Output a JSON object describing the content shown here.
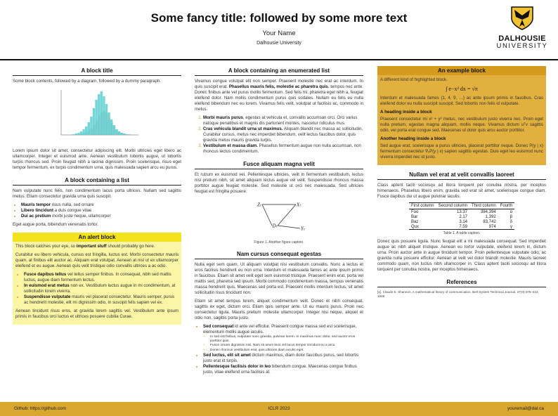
{
  "header": {
    "title": "Some fancy title: followed by some more text",
    "author": "Your Name",
    "affiliation": "Dalhousie University"
  },
  "logo": {
    "name": "DALHOUSIE",
    "subtitle": "UNIVERSITY"
  },
  "columns": [
    [
      {
        "title": "A block title",
        "style": "plain",
        "content": [
          {
            "p": [
              "Some block contents, followed by a diagram, followed by a dummy paragraph."
            ]
          },
          {
            "figure": "histogram"
          },
          {
            "p": [
              "Lorem ipsum dolor sit amet, consectetur adipiscing elit. Morbi ultricies eget libero ac ullamcorper. Integer et euismod ante. Aenean vestibulum lobortis augue, ut lobortis turpis rhoncus sed. Proin feugiat nibh a lacinia dignissim. Proin scelerisque, risus eget tempor fermentum, ex turpis condimentum urna, quis malesuada sapien arcu eu purus."
            ]
          }
        ]
      },
      {
        "title": "A block containing a list",
        "style": "plain",
        "content": [
          {
            "p": [
              "Nam vulputate nunc felis, non condimentum lacus porta ultrices. Nullam sed sagittis metus. Etiam consectetur gravida urna quis suscipit."
            ]
          },
          {
            "ul": [
              {
                "b": "Mauris tempor",
                "t": " risus nulla, sed ornare"
              },
              {
                "b": "Libero tincidunt",
                "t": " a duis congue vitae"
              },
              {
                "b": "Dui ac pretium",
                "t": " morbi juste neque, ullamcorper"
              }
            ]
          },
          {
            "p": [
              "Eget augue porta, bibendum venenatis tortor."
            ]
          }
        ]
      },
      {
        "title": "An alert block",
        "style": "alert",
        "content": [
          {
            "p": [
              "This block catches your eye, so ",
              {
                "b": "important stuff"
              },
              " should probably go here."
            ]
          },
          {
            "p": [
              "Curabitur eu libero vehicula, cursus est fringilla, luctus est. Morbi consectetur mauris quam, at finibus elit auctor ac. Aliquam erat volutpat. Aenean at nisl ut ex ullamcorper eleifend et eu augue. Aenean quis velit tristique odio convallis ultrices a ac odio."
            ]
          },
          {
            "ul": [
              {
                "b": "Fusce dapibus tellus",
                "t": " vel tellus semper finibus. In consequat, nibh sed mattis luctus, augue diam fermentum lectus."
              },
              {
                "b": "In euismod erat metus",
                "t": " non ex. Vestibulum luctus augue in mi condimentum, at sollicitudin lorem viverra."
              },
              {
                "b": "Suspendisse vulputate",
                "t": " mauris vel placerat consectetur. Mauris semper, purus ac hendrerit molestie, elit mi dignissim odio, in suscipit felis sapien vel ex."
              }
            ]
          },
          {
            "p": [
              "Aenean tincidunt risus eros, at gravida lorem sagittis vel. Vestibulum ante ipsum primis in faucibus orci luctus et ultrices posuere cubilia Curae."
            ]
          }
        ]
      }
    ],
    [
      {
        "title": "A block containing an enumerated list",
        "style": "plain",
        "content": [
          {
            "p": [
              "Vivamus congue volutpat elit non semper. Praesent molestie nec erat ac interdum. In quis suscipit erat. ",
              {
                "b": "Phasellus mauris felis, molestie ac pharetra quis"
              },
              ", tempus nec ante. Donec finibus ante vel purus mollis fermentum. Sed felis mi, pharetra eget nibh a, feugiat eleifend dolor. Nam mollis condimentum purus quis sodales. Nullam eu felis eu nulla eleifend bibendum nec eu lorem. Vivamus felis velit, volutpat ut facilisis ac, commodo in metus."
            ]
          },
          {
            "ol": [
              {
                "b": "Morbi mauris purus",
                "t": ", egestas at vehicula et, convallis accumsan orci. Orci varius natoque penatibus et magnis dis parturient montes, nascetur ridiculus mus."
              },
              {
                "b": "Cras vehicula blandit urna ut maximus.",
                "t": " Aliquam blandit nec massa ac sollicitudin. Curabitur cursus, metus nec imperdiet bibendum, velit lectus faucibus dolor, quis gravida metus mauris gravida turpis."
              },
              {
                "b": "Vestibulum et massa diam.",
                "t": " Phasellus fermentum augue non nulla accumsan, non rhoncus lectus condimentum."
              }
            ]
          }
        ]
      },
      {
        "title": "Fusce aliquam magna velit",
        "style": "plain",
        "content": [
          {
            "p": [
              "Et rutrum ex euismod vel. Pellentesque ultricies, velit in fermentum vestibulum, lectus nisi pretium nibh, sit amet aliquam lectus augue vel velit. Suspendisse rhoncus massa porttitor augue feugiat molestie. Sed molestie ut orci nec malesuada. Sed ultricies feugiat est fringilla posuere."
            ]
          },
          {
            "diagram": {
              "labels": [
                "Zₜ",
                "Xₜ",
                "Dₜ",
                "Yₜ"
              ],
              "caption": "Figure 1. Another figure caption."
            }
          }
        ]
      },
      {
        "title": "Nam cursus consequat egestas",
        "style": "plain",
        "content": [
          {
            "p": [
              "Nulla eget sem quam. Ut aliquam volutpat nisi vestibulum convallis. Nunc a lectus et eros facilisis hendrerit eu non urna. Interdum et malesuada fames ac ante ipsum primis in faucibus. Etiam sit amet velit eget sem euismod tristique. Praesent enim erat, porta vel mattis sed, pharetra sed ipsum. Morbi commodo condimentum massa, tempus venenatis massa hendrerit quis. Maecenas sed porta est. Praesent mollis interdum lectus, sit amet sollicitudin risus tincidunt non."
            ]
          },
          {
            "p": [
              "Etiam sit amet tempus lorem, aliquet condimentum velit. Donec et nibh consequat, sagittis ex eget, dictum orci. Etiam quis semper ante. Ut eu mauris purus. Proin nec consectetur ligula. Mauris pretium molestie ullamcorper. Integer nisi neque, aliquet et odio non, sagittis porta justo."
            ]
          },
          {
            "ul": [
              {
                "b": "Sed consequat",
                "t": " id ante vel efficitur. Praesent congue massa sed est scelerisque, elementum mollis augue iaculis.",
                "sub": [
                  "In sed est finibus, vulputate nunc gravida, pulvinar lorem. In maximus nunc dolor, sed auctor eros porttitor quis.",
                  "Fusce ornare dignissim nisi. Nam sit amet risus vel lacus tempor tincidunt eu a arcu.",
                  "Donec rhoncus vestibulum erat, quis ultricies diam iaculis eget."
                ]
              },
              {
                "b": "Sed luctus, elit sit amet",
                "t": " dictum maximus, diam dolor faucibus purus, sed lobortis justo erat id turpis."
              },
              {
                "b": "Pellentesque facilisis dolor in leo",
                "t": " bibendum congue. Maecenas congue finibus justo, vitae eleifend urna facilisis at."
              }
            ]
          }
        ]
      }
    ],
    [
      {
        "title": "An example block",
        "style": "example",
        "content": [
          {
            "p": [
              "A different kind of highlighted block."
            ]
          },
          {
            "math": "∫ e−x² dx = √π"
          },
          {
            "p": [
              "Interdum et malesuada fames {1, 4, 9, …} ac ante ipsum primis in faucibus. Cras eleifend dolor eu nulla suscipit suscipit. Sed lobortis non felis id vulputate."
            ]
          },
          {
            "h": "A heading inside a block"
          },
          {
            "p": [
              "Praesent consectetur mi x² + y² metus, nec vestibulum justo viverra nec. Proin eget nulla pretium, egestas magna aliquam, mollis neque. Vivamus dictum uᵀv sagittis odio, vel porta erat congue sed. Maecenas ut dolor quis arcu auctor porttitor."
            ]
          },
          {
            "h": "Another heading inside a block"
          },
          {
            "p": [
              "Sed augue erat, scelerisque a purus ultricies, placerat porttitor neque. Donec P(y | x) fermentum consectetur ∇ₓP(y | x) sapien sagittis egestas. Duis eget leo euismod nunc viverra imperdiet nec id justo."
            ]
          }
        ]
      },
      {
        "title": "Nullam vel erat at velit convallis laoreet",
        "style": "plain",
        "content": [
          {
            "p": [
              "Class aptent taciti sociosqu ad litora torquent per conubia nostra, per inceptos himenaeos. Phasellus libero enim, gravida sed erat sit amet, scelerisque congue diam. Fusce dapibus dui ut augue pulvinar iaculis."
            ]
          },
          {
            "table": {
              "header": [
                "First column",
                "Second column",
                "Third column",
                "Fourth"
              ],
              "rows": [
                [
                  "Foo",
                  "13.37",
                  "384,394",
                  "α"
                ],
                [
                  "Bar",
                  "2.17",
                  "1,392",
                  "β"
                ],
                [
                  "Baz",
                  "3.14",
                  "83,742",
                  "δ"
                ],
                [
                  "Qux",
                  "7.59",
                  "974",
                  "γ"
                ]
              ],
              "caption": "Table 1. A table caption."
            }
          },
          {
            "p": [
              "Donec quis posuere ligula. Nunc feugiat elit a mi malesuada consequat. Sed imperdiet augue ac nibh aliquet tristique. Aenean eu tortor vulputate, eleifend lorem in, dictum urna. Proin auctor ante in augue tincidunt tempor. Proin pellentesque vulputate odio, ac gravida nulla posuere efficitur. Aenean at velit vel dolor blandit molestie. Mauris laoreet commodo quam, non luctus nibh ullamcorper in. Class aptent taciti sociosqu ad litora torquent per conubia nostra, per inceptos himenaeos."
            ]
          }
        ]
      },
      {
        "title": "References",
        "style": "plain",
        "content": [
          {
            "ref": "[1]. Claude E. Shannon. A mathematical theory of communication. Bell System Technical Journal, 27(3):379–423, 1948."
          }
        ]
      }
    ]
  ],
  "footer": {
    "left": "Github: https://github.com",
    "center": "ICLR 2023",
    "right": "youremail@dal.ca"
  }
}
